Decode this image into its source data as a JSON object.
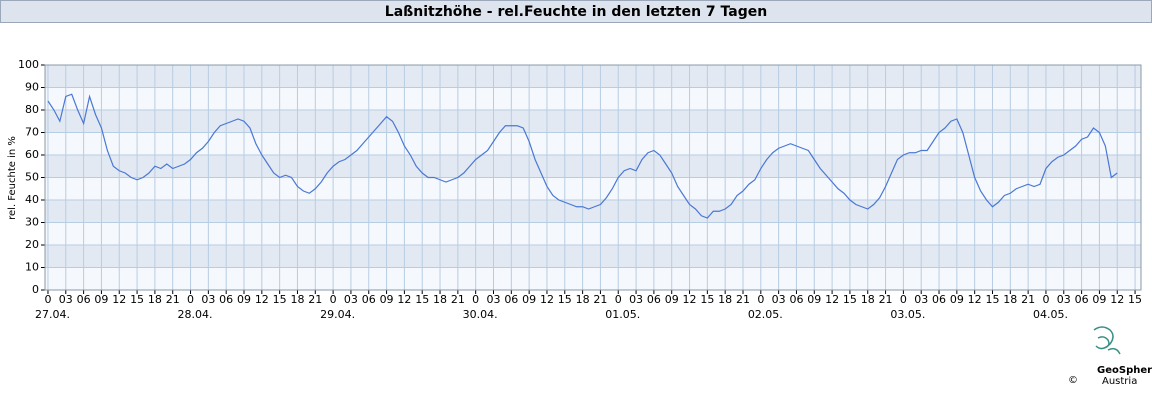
{
  "chart_data": {
    "type": "line",
    "title": "Laßnitzhöhe - rel.Feuchte in den letzten 7 Tagen",
    "y_label": "rel. Feuchte in %",
    "xlim": [
      -0.5,
      184
    ],
    "ylim": [
      0,
      100
    ],
    "yticks": [
      0,
      10,
      20,
      30,
      40,
      50,
      60,
      70,
      80,
      90,
      100
    ],
    "xticks": [
      {
        "value": 0,
        "label": "0"
      },
      {
        "value": 3,
        "label": "03"
      },
      {
        "value": 6,
        "label": "06"
      },
      {
        "value": 9,
        "label": "09"
      },
      {
        "value": 12,
        "label": "12"
      },
      {
        "value": 15,
        "label": "15"
      },
      {
        "value": 18,
        "label": "18"
      },
      {
        "value": 21,
        "label": "21"
      },
      {
        "value": 24,
        "label": "0"
      },
      {
        "value": 27,
        "label": "03"
      },
      {
        "value": 30,
        "label": "06"
      },
      {
        "value": 33,
        "label": "09"
      },
      {
        "value": 36,
        "label": "12"
      },
      {
        "value": 39,
        "label": "15"
      },
      {
        "value": 42,
        "label": "18"
      },
      {
        "value": 45,
        "label": "21"
      },
      {
        "value": 48,
        "label": "0"
      },
      {
        "value": 51,
        "label": "03"
      },
      {
        "value": 54,
        "label": "06"
      },
      {
        "value": 57,
        "label": "09"
      },
      {
        "value": 60,
        "label": "12"
      },
      {
        "value": 63,
        "label": "15"
      },
      {
        "value": 66,
        "label": "18"
      },
      {
        "value": 69,
        "label": "21"
      },
      {
        "value": 72,
        "label": "0"
      },
      {
        "value": 75,
        "label": "03"
      },
      {
        "value": 78,
        "label": "06"
      },
      {
        "value": 81,
        "label": "09"
      },
      {
        "value": 84,
        "label": "12"
      },
      {
        "value": 87,
        "label": "15"
      },
      {
        "value": 90,
        "label": "18"
      },
      {
        "value": 93,
        "label": "21"
      },
      {
        "value": 96,
        "label": "0"
      },
      {
        "value": 99,
        "label": "03"
      },
      {
        "value": 102,
        "label": "06"
      },
      {
        "value": 105,
        "label": "09"
      },
      {
        "value": 108,
        "label": "12"
      },
      {
        "value": 111,
        "label": "15"
      },
      {
        "value": 114,
        "label": "18"
      },
      {
        "value": 117,
        "label": "21"
      },
      {
        "value": 120,
        "label": "0"
      },
      {
        "value": 123,
        "label": "03"
      },
      {
        "value": 126,
        "label": "06"
      },
      {
        "value": 129,
        "label": "09"
      },
      {
        "value": 132,
        "label": "12"
      },
      {
        "value": 135,
        "label": "15"
      },
      {
        "value": 138,
        "label": "18"
      },
      {
        "value": 141,
        "label": "21"
      },
      {
        "value": 144,
        "label": "0"
      },
      {
        "value": 147,
        "label": "03"
      },
      {
        "value": 150,
        "label": "06"
      },
      {
        "value": 153,
        "label": "09"
      },
      {
        "value": 156,
        "label": "12"
      },
      {
        "value": 159,
        "label": "15"
      },
      {
        "value": 162,
        "label": "18"
      },
      {
        "value": 165,
        "label": "21"
      },
      {
        "value": 168,
        "label": "0"
      },
      {
        "value": 171,
        "label": "03"
      },
      {
        "value": 174,
        "label": "06"
      },
      {
        "value": 177,
        "label": "09"
      },
      {
        "value": 180,
        "label": "12"
      },
      {
        "value": 183,
        "label": "15"
      }
    ],
    "date_labels": [
      {
        "value": 0,
        "label": "27.04."
      },
      {
        "value": 24,
        "label": "28.04."
      },
      {
        "value": 48,
        "label": "29.04."
      },
      {
        "value": 72,
        "label": "30.04."
      },
      {
        "value": 96,
        "label": "01.05."
      },
      {
        "value": 120,
        "label": "02.05."
      },
      {
        "value": 144,
        "label": "03.05."
      },
      {
        "value": 168,
        "label": "04.05."
      }
    ],
    "grid": true,
    "series": [
      {
        "color": "#4a78d4",
        "x": [
          0,
          1,
          2,
          3,
          4,
          5,
          6,
          7,
          8,
          9,
          10,
          11,
          12,
          13,
          14,
          15,
          16,
          17,
          18,
          19,
          20,
          21,
          22,
          23,
          24,
          25,
          26,
          27,
          28,
          29,
          30,
          31,
          32,
          33,
          34,
          35,
          36,
          37,
          38,
          39,
          40,
          41,
          42,
          43,
          44,
          45,
          46,
          47,
          48,
          49,
          50,
          51,
          52,
          53,
          54,
          55,
          56,
          57,
          58,
          59,
          60,
          61,
          62,
          63,
          64,
          65,
          66,
          67,
          68,
          69,
          70,
          71,
          72,
          73,
          74,
          75,
          76,
          77,
          78,
          79,
          80,
          81,
          82,
          83,
          84,
          85,
          86,
          87,
          88,
          89,
          90,
          91,
          92,
          93,
          94,
          95,
          96,
          97,
          98,
          99,
          100,
          101,
          102,
          103,
          104,
          105,
          106,
          107,
          108,
          109,
          110,
          111,
          112,
          113,
          114,
          115,
          116,
          117,
          118,
          119,
          120,
          121,
          122,
          123,
          124,
          125,
          126,
          127,
          128,
          129,
          130,
          131,
          132,
          133,
          134,
          135,
          136,
          137,
          138,
          139,
          140,
          141,
          142,
          143,
          144,
          145,
          146,
          147,
          148,
          149,
          150,
          151,
          152,
          153,
          154,
          155,
          156,
          157,
          158,
          159,
          160,
          161,
          162,
          163,
          164,
          165,
          166,
          167,
          168,
          169,
          170,
          171,
          172,
          173,
          174,
          175,
          176,
          177,
          178,
          179,
          180
        ],
        "values": [
          84,
          80,
          75,
          86,
          87,
          80,
          74,
          86,
          78,
          72,
          62,
          55,
          53,
          52,
          50,
          49,
          50,
          52,
          55,
          54,
          56,
          54,
          55,
          56,
          58,
          61,
          63,
          66,
          70,
          73,
          74,
          75,
          76,
          75,
          72,
          65,
          60,
          56,
          52,
          50,
          51,
          50,
          46,
          44,
          43,
          45,
          48,
          52,
          55,
          57,
          58,
          60,
          62,
          65,
          68,
          71,
          74,
          77,
          75,
          70,
          64,
          60,
          55,
          52,
          50,
          50,
          49,
          48,
          49,
          50,
          52,
          55,
          58,
          60,
          62,
          66,
          70,
          73,
          73,
          73,
          72,
          66,
          58,
          52,
          46,
          42,
          40,
          39,
          38,
          37,
          37,
          36,
          37,
          38,
          41,
          45,
          50,
          53,
          54,
          53,
          58,
          61,
          62,
          60,
          56,
          52,
          46,
          42,
          38,
          36,
          33,
          32,
          35,
          35,
          36,
          38,
          42,
          44,
          47,
          49,
          54,
          58,
          61,
          63,
          64,
          65,
          64,
          63,
          62,
          58,
          54,
          51,
          48,
          45,
          43,
          40,
          38,
          37,
          36,
          38,
          41,
          46,
          52,
          58,
          60,
          61,
          61,
          62,
          62,
          66,
          70,
          72,
          75,
          76,
          70,
          60,
          50,
          44,
          40,
          37,
          39,
          42,
          43,
          45,
          46,
          47,
          46,
          47,
          54,
          57,
          59,
          60,
          62,
          64,
          67,
          68,
          72,
          70,
          64,
          50,
          52
        ]
      }
    ]
  }
}
